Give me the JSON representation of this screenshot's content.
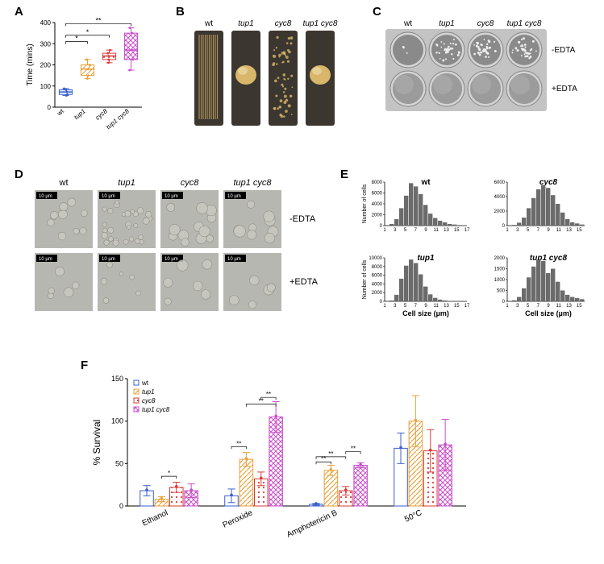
{
  "panelA": {
    "label": "A",
    "type": "boxplot",
    "y_axis_label": "Time (mins)",
    "ylim": [
      0,
      400
    ],
    "yticks": [
      0,
      100,
      200,
      300,
      400
    ],
    "categories": [
      "wt",
      "tup1",
      "cyc8",
      "tup1 cyc8"
    ],
    "italic": [
      false,
      true,
      true,
      true
    ],
    "data": [
      {
        "min": 55,
        "q1": 60,
        "median": 72,
        "q3": 82,
        "max": 88,
        "color": "#3a5fcd",
        "fill": "#eef2fb"
      },
      {
        "min": 135,
        "q1": 150,
        "median": 180,
        "q3": 200,
        "max": 225,
        "color": "#e8a23c",
        "fill": "#ffffff",
        "pattern": "diag"
      },
      {
        "min": 210,
        "q1": 225,
        "median": 242,
        "q3": 255,
        "max": 270,
        "color": "#d93a3a",
        "fill": "#ffffff",
        "pattern": "dots"
      },
      {
        "min": 175,
        "q1": 225,
        "median": 270,
        "q3": 350,
        "max": 375,
        "color": "#c94fc9",
        "fill": "#f9eaf9",
        "pattern": "cross"
      }
    ],
    "sig_bars": [
      {
        "from": 0,
        "to": 1,
        "y": 310,
        "label": "*"
      },
      {
        "from": 0,
        "to": 2,
        "y": 340,
        "label": "*"
      },
      {
        "from": 0,
        "to": 3,
        "y": 395,
        "label": "**"
      }
    ],
    "background": "#ffffff",
    "axis_color": "#000000"
  },
  "panelB": {
    "label": "B",
    "strains": [
      "wt",
      "tup1",
      "cyc8",
      "tup1 cyc8"
    ],
    "italic": [
      false,
      true,
      true,
      true
    ],
    "tube_bg": "#3b362f",
    "growth_color": "#d8b66a"
  },
  "panelC": {
    "label": "C",
    "strains": [
      "wt",
      "tup1",
      "cyc8",
      "tup1 cyc8"
    ],
    "italic": [
      false,
      true,
      true,
      true
    ],
    "row_labels": [
      "-EDTA",
      "+EDTA"
    ],
    "well_bg": "#8a8a8a",
    "colony_color": "#eeeeee",
    "panel_bg": "#c3c3c3"
  },
  "panelD": {
    "label": "D",
    "strains": [
      "wt",
      "tup1",
      "cyc8",
      "tup1 cyc8"
    ],
    "italic": [
      false,
      true,
      true,
      true
    ],
    "row_labels": [
      "-EDTA",
      "+EDTA"
    ],
    "scale_label": "10 µm",
    "cell_bg": "#b7b7b2",
    "cell_fill": "#c9c9c1",
    "cell_outline": "#8a8a80"
  },
  "panelE": {
    "label": "E",
    "type": "histogram",
    "subplots": [
      "wt",
      "cyc8",
      "tup1",
      "tup1 cyc8"
    ],
    "italic": [
      false,
      true,
      true,
      true
    ],
    "x_axis_label": "Cell size (µm)",
    "y_axis_label": "Number of cells",
    "xticks": [
      1,
      3,
      5,
      7,
      9,
      11,
      13,
      15,
      17
    ],
    "bar_color": "#6b6b6b",
    "data": {
      "wt": {
        "ymax": 8000,
        "yticks": [
          0,
          2000,
          4000,
          6000,
          8000
        ],
        "values": [
          0,
          300,
          1200,
          3200,
          5500,
          7800,
          7200,
          5800,
          3800,
          2200,
          1400,
          900,
          600,
          300,
          200,
          100,
          50
        ]
      },
      "cyc8": {
        "ymax": 6000,
        "yticks": [
          0,
          2000,
          4000,
          6000
        ],
        "values": [
          0,
          100,
          400,
          1100,
          2400,
          3800,
          5000,
          5600,
          5200,
          4200,
          3000,
          1800,
          900,
          450,
          300,
          150,
          80
        ]
      },
      "tup1": {
        "ymax": 10000,
        "yticks": [
          0,
          2000,
          4000,
          6000,
          8000,
          10000
        ],
        "values": [
          0,
          200,
          1500,
          5200,
          8200,
          9600,
          8800,
          6200,
          3400,
          1600,
          800,
          400,
          200,
          100,
          50,
          30,
          20
        ]
      },
      "tup1 cyc8": {
        "ymax": 2000,
        "yticks": [
          0,
          500,
          1000,
          1500,
          2000
        ],
        "values": [
          0,
          50,
          200,
          600,
          1100,
          1600,
          1900,
          1850,
          1300,
          1500,
          900,
          500,
          300,
          200,
          150,
          100,
          60
        ]
      }
    }
  },
  "panelF": {
    "label": "F",
    "type": "bar",
    "y_axis_label": "% Survival",
    "ylim": [
      0,
      150
    ],
    "yticks": [
      0,
      50,
      100,
      150
    ],
    "conditions": [
      "Ethanol",
      "Peroxide",
      "Amphotericin B",
      "50°C"
    ],
    "series": [
      {
        "name": "wt",
        "color": "#3a5fcd",
        "fill": "#ffffff",
        "pattern": "none",
        "marker": "square"
      },
      {
        "name": "tup1",
        "color": "#e8a23c",
        "fill": "#ffffff",
        "pattern": "diag",
        "marker": "triangle",
        "italic": true
      },
      {
        "name": "cyc8",
        "color": "#d93a3a",
        "fill": "#ffffff",
        "pattern": "dots",
        "marker": "triangle-down",
        "italic": true
      },
      {
        "name": "tup1 cyc8",
        "color": "#c94fc9",
        "fill": "#ffffff",
        "pattern": "cross",
        "marker": "diamond",
        "italic": true
      }
    ],
    "data": [
      [
        18,
        8,
        22,
        18
      ],
      [
        12,
        55,
        32,
        105
      ],
      [
        2,
        42,
        18,
        48
      ],
      [
        68,
        100,
        65,
        72
      ]
    ],
    "errors": [
      [
        6,
        3,
        6,
        8
      ],
      [
        8,
        8,
        8,
        18
      ],
      [
        1,
        6,
        5,
        3
      ],
      [
        18,
        30,
        25,
        30
      ]
    ],
    "sig": [
      {
        "cond": 0,
        "pairs": [
          [
            1,
            2,
            "*",
            35
          ]
        ]
      },
      {
        "cond": 1,
        "pairs": [
          [
            0,
            1,
            "**",
            70
          ],
          [
            1,
            3,
            "**",
            120
          ],
          [
            2,
            3,
            "**",
            128
          ]
        ]
      },
      {
        "cond": 2,
        "pairs": [
          [
            0,
            1,
            "**",
            52
          ],
          [
            0,
            2,
            "**",
            58
          ],
          [
            2,
            3,
            "**",
            64
          ]
        ]
      }
    ]
  }
}
